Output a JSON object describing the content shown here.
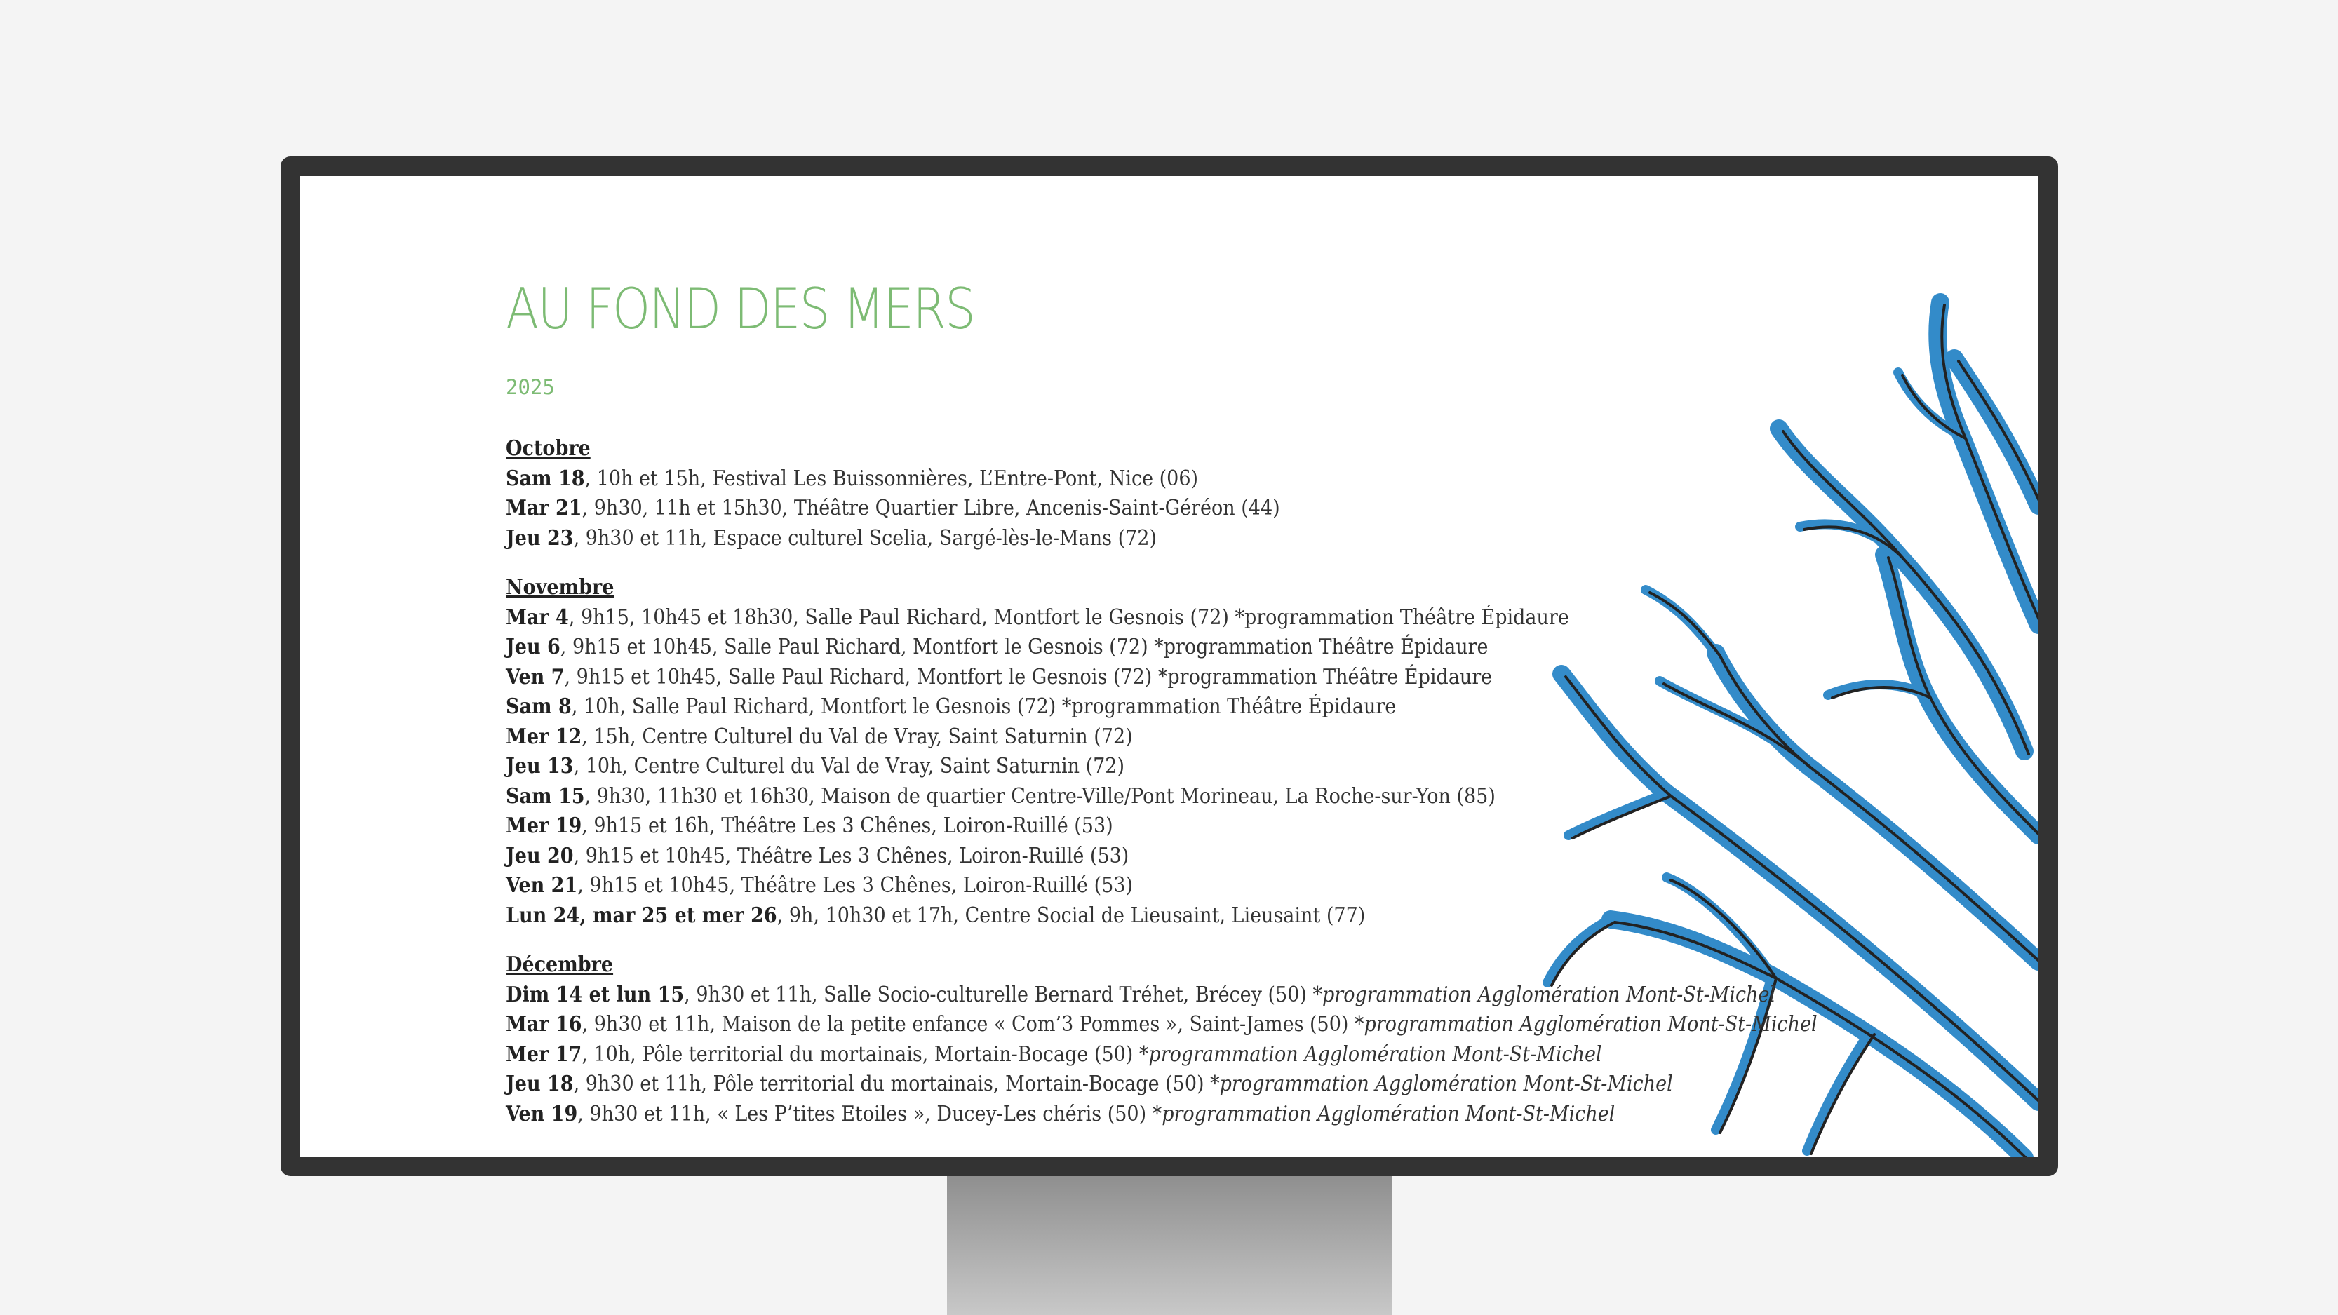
{
  "title": "AU FOND DES MERS",
  "year": "2025",
  "accent_color": "#7dbb74",
  "illustration": "blue seaweed watercolor",
  "sections": [
    {
      "month": "Octobre",
      "events": [
        {
          "day": "Sam 18",
          "details": ", 10h et 15h, Festival Les Buissonnières, L’Entre-Pont, Nice (06)",
          "note": ""
        },
        {
          "day": "Mar 21",
          "details": ", 9h30, 11h et 15h30, Théâtre Quartier Libre, Ancenis-Saint-Géréon (44)",
          "note": ""
        },
        {
          "day": "Jeu 23",
          "details": ", 9h30 et 11h, Espace culturel Scelia, Sargé-lès-le-Mans (72)",
          "note": ""
        }
      ]
    },
    {
      "month": "Novembre",
      "events": [
        {
          "day": "Mar 4",
          "details": ", 9h15, 10h45 et 18h30, Salle Paul Richard, Montfort le Gesnois (72) *programmation Théâtre Épidaure",
          "note": ""
        },
        {
          "day": "Jeu 6",
          "details": ", 9h15 et 10h45, Salle Paul Richard, Montfort le Gesnois (72) *programmation Théâtre Épidaure",
          "note": ""
        },
        {
          "day": "Ven 7",
          "details": ", 9h15 et 10h45, Salle Paul Richard, Montfort le Gesnois (72) *programmation Théâtre Épidaure",
          "note": ""
        },
        {
          "day": "Sam 8",
          "details": ", 10h, Salle Paul Richard, Montfort le Gesnois (72) *programmation Théâtre Épidaure",
          "note": ""
        },
        {
          "day": "Mer 12",
          "details": ", 15h, Centre Culturel du Val de Vray, Saint Saturnin (72)",
          "note": ""
        },
        {
          "day": "Jeu 13",
          "details": ", 10h, Centre Culturel du Val de Vray, Saint Saturnin (72)",
          "note": ""
        },
        {
          "day": "Sam 15",
          "details": ", 9h30, 11h30 et 16h30, Maison de quartier Centre-Ville/Pont Morineau, La Roche-sur-Yon (85)",
          "note": ""
        },
        {
          "day": "Mer 19",
          "details": ", 9h15 et 16h, Théâtre Les 3 Chênes, Loiron-Ruillé (53)",
          "note": ""
        },
        {
          "day": "Jeu 20",
          "details": ", 9h15 et 10h45, Théâtre Les 3 Chênes, Loiron-Ruillé (53)",
          "note": ""
        },
        {
          "day": "Ven 21",
          "details": ", 9h15 et 10h45, Théâtre Les 3 Chênes, Loiron-Ruillé (53)",
          "note": ""
        },
        {
          "day": "Lun 24, mar 25 et mer 26",
          "details": ", 9h, 10h30 et 17h, Centre Social de Lieusaint, Lieusaint (77)",
          "note": ""
        }
      ]
    },
    {
      "month": "Décembre",
      "events": [
        {
          "day": "Dim 14 et lun 15",
          "details": ", 9h30 et 11h, Salle Socio-culturelle Bernard Tréhet, Brécey (50) ",
          "note": "*programmation Agglomération Mont-St-Michel"
        },
        {
          "day": "Mar 16",
          "details": ", 9h30 et 11h, Maison de la petite enfance « Com’3 Pommes », Saint-James (50) ",
          "note": "*programmation Agglomération Mont-St-Michel"
        },
        {
          "day": "Mer 17",
          "details": ", 10h, Pôle territorial du mortainais, Mortain-Bocage (50) ",
          "note": "*programmation Agglomération Mont-St-Michel"
        },
        {
          "day": "Jeu 18",
          "details": ", 9h30 et 11h, Pôle territorial du mortainais, Mortain-Bocage (50) ",
          "note": "*programmation Agglomération Mont-St-Michel"
        },
        {
          "day": "Ven 19",
          "details": ", 9h30 et 11h, « Les P’tites Etoiles », Ducey-Les chéris (50) ",
          "note": "*programmation Agglomération Mont-St-Michel"
        }
      ]
    }
  ]
}
